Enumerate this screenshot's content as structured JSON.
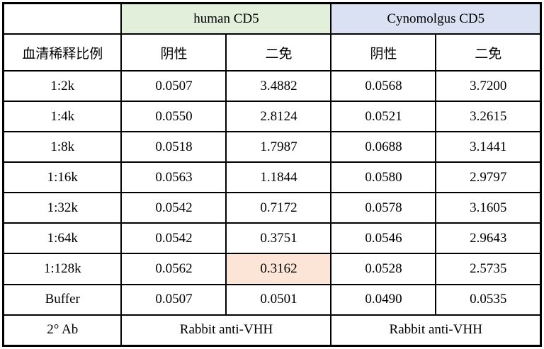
{
  "colors": {
    "human_cd5_header_bg": "#e2efda",
    "cynomolgus_cd5_header_bg": "#d9e1f2",
    "highlight_bg": "#fce4d6",
    "border": "#000000",
    "text": "#000000",
    "background": "#ffffff"
  },
  "table": {
    "groups": [
      {
        "label": "human CD5"
      },
      {
        "label": "Cynomolgus CD5"
      }
    ],
    "column_headers": [
      "血清稀释比例",
      "阴性",
      "二免",
      "阴性",
      "二免"
    ],
    "rows": [
      {
        "label": "1:2k",
        "values": [
          "0.0507",
          "3.4882",
          "0.0568",
          "3.7200"
        ]
      },
      {
        "label": "1:4k",
        "values": [
          "0.0550",
          "2.8124",
          "0.0521",
          "3.2615"
        ]
      },
      {
        "label": "1:8k",
        "values": [
          "0.0518",
          "1.7987",
          "0.0688",
          "3.1441"
        ]
      },
      {
        "label": "1:16k",
        "values": [
          "0.0563",
          "1.1844",
          "0.0580",
          "2.9797"
        ]
      },
      {
        "label": "1:32k",
        "values": [
          "0.0542",
          "0.7172",
          "0.0578",
          "3.1605"
        ]
      },
      {
        "label": "1:64k",
        "values": [
          "0.0542",
          "0.3751",
          "0.0546",
          "2.9643"
        ]
      },
      {
        "label": "1:128k",
        "values": [
          "0.0562",
          "0.3162",
          "0.0528",
          "2.5735"
        ]
      },
      {
        "label": "Buffer",
        "values": [
          "0.0507",
          "0.0501",
          "0.0490",
          "0.0535"
        ]
      }
    ],
    "highlight_cell": {
      "row_index": 6,
      "value_index": 1
    },
    "footer": {
      "label": "2° Ab",
      "left": "Rabbit anti-VHH",
      "right": "Rabbit anti-VHH"
    }
  }
}
